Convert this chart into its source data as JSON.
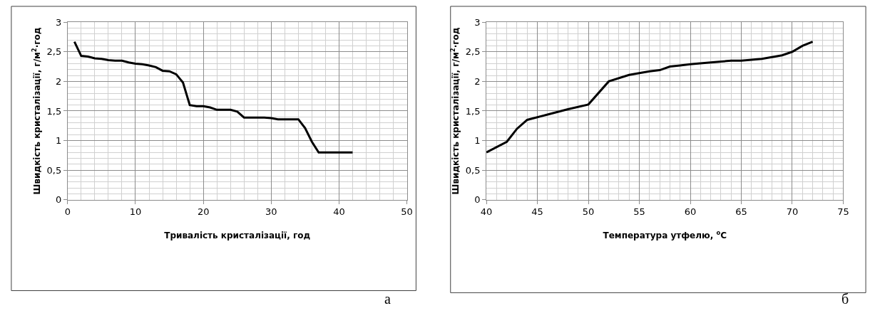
{
  "chart_data": [
    {
      "type": "line",
      "xlabel": "Тривалість кристалізації, год",
      "ylabel": "Швидкість кристалізації, г/м$^{2}$·год",
      "annotations": [
        "а"
      ],
      "grid": true,
      "marker": "none",
      "line_style": "solid",
      "xlim": [
        0,
        50
      ],
      "xticks": [
        0,
        10,
        20,
        30,
        40,
        50
      ],
      "ylim": [
        0,
        3
      ],
      "yticks": [
        {
          "value": 0,
          "label": "0"
        },
        {
          "value": 0.5,
          "label": "0,5"
        },
        {
          "value": 1,
          "label": "1"
        },
        {
          "value": 1.5,
          "label": "1,5"
        },
        {
          "value": 2,
          "label": "2"
        },
        {
          "value": 2.5,
          "label": "2,5"
        },
        {
          "value": 3,
          "label": "3"
        }
      ],
      "series": [
        {
          "color": "#000000",
          "x": [
            1,
            2,
            3,
            4,
            5,
            6,
            7,
            8,
            9,
            10,
            11,
            12,
            13,
            14,
            15,
            16,
            17,
            18,
            19,
            20,
            21,
            22,
            23,
            24,
            25,
            26,
            27,
            28,
            29,
            30,
            31,
            32,
            33,
            34,
            35,
            36,
            37,
            38,
            39,
            40,
            41,
            42
          ],
          "values": [
            2.67,
            2.43,
            2.42,
            2.39,
            2.38,
            2.36,
            2.35,
            2.35,
            2.32,
            2.3,
            2.29,
            2.27,
            2.24,
            2.18,
            2.17,
            2.12,
            1.98,
            1.6,
            1.58,
            1.58,
            1.56,
            1.52,
            1.52,
            1.52,
            1.49,
            1.39,
            1.39,
            1.39,
            1.39,
            1.38,
            1.36,
            1.36,
            1.36,
            1.36,
            1.21,
            0.98,
            0.8,
            0.8,
            0.8,
            0.8,
            0.8,
            0.8
          ]
        }
      ]
    },
    {
      "type": "line",
      "xlabel": "Температура утфелю, $^{o}$C",
      "ylabel": "Швидкість кристалізації, г/м$^{2}$·год",
      "annotations": [
        "б"
      ],
      "grid": true,
      "marker": "none",
      "line_style": "solid",
      "xlim": [
        40,
        75
      ],
      "xticks": [
        40,
        45,
        50,
        55,
        60,
        65,
        70,
        75
      ],
      "ylim": [
        0,
        3
      ],
      "yticks": [
        {
          "value": 0,
          "label": "0"
        },
        {
          "value": 0.5,
          "label": "0,5"
        },
        {
          "value": 1,
          "label": "1"
        },
        {
          "value": 1.5,
          "label": "1,5"
        },
        {
          "value": 2,
          "label": "2"
        },
        {
          "value": 2.5,
          "label": "2,5"
        },
        {
          "value": 3,
          "label": "3"
        }
      ],
      "series": [
        {
          "color": "#000000",
          "x": [
            40,
            42,
            43,
            44,
            46,
            48,
            50,
            52,
            54,
            56,
            57,
            58,
            59,
            60,
            62,
            64,
            65,
            67,
            69,
            70,
            71,
            72
          ],
          "values": [
            0.8,
            0.98,
            1.2,
            1.35,
            1.44,
            1.53,
            1.61,
            2.0,
            2.11,
            2.17,
            2.19,
            2.25,
            2.27,
            2.29,
            2.32,
            2.35,
            2.35,
            2.38,
            2.44,
            2.5,
            2.6,
            2.67
          ]
        }
      ]
    }
  ]
}
